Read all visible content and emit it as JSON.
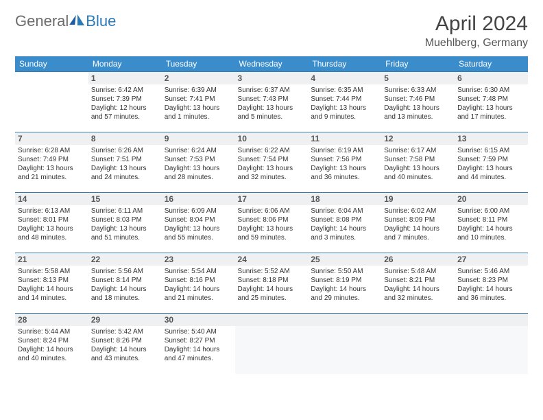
{
  "brand": {
    "general": "General",
    "blue": "Blue"
  },
  "title": "April 2024",
  "location": "Muehlberg, Germany",
  "weekdays": [
    "Sunday",
    "Monday",
    "Tuesday",
    "Wednesday",
    "Thursday",
    "Friday",
    "Saturday"
  ],
  "header_bg": "#3a8ccb",
  "rule_color": "#3a7aa8",
  "daynum_bg": "#eef0f1",
  "days": [
    {
      "n": 1,
      "sunrise": "6:42 AM",
      "sunset": "7:39 PM",
      "daylight": "12 hours and 57 minutes."
    },
    {
      "n": 2,
      "sunrise": "6:39 AM",
      "sunset": "7:41 PM",
      "daylight": "13 hours and 1 minutes."
    },
    {
      "n": 3,
      "sunrise": "6:37 AM",
      "sunset": "7:43 PM",
      "daylight": "13 hours and 5 minutes."
    },
    {
      "n": 4,
      "sunrise": "6:35 AM",
      "sunset": "7:44 PM",
      "daylight": "13 hours and 9 minutes."
    },
    {
      "n": 5,
      "sunrise": "6:33 AM",
      "sunset": "7:46 PM",
      "daylight": "13 hours and 13 minutes."
    },
    {
      "n": 6,
      "sunrise": "6:30 AM",
      "sunset": "7:48 PM",
      "daylight": "13 hours and 17 minutes."
    },
    {
      "n": 7,
      "sunrise": "6:28 AM",
      "sunset": "7:49 PM",
      "daylight": "13 hours and 21 minutes."
    },
    {
      "n": 8,
      "sunrise": "6:26 AM",
      "sunset": "7:51 PM",
      "daylight": "13 hours and 24 minutes."
    },
    {
      "n": 9,
      "sunrise": "6:24 AM",
      "sunset": "7:53 PM",
      "daylight": "13 hours and 28 minutes."
    },
    {
      "n": 10,
      "sunrise": "6:22 AM",
      "sunset": "7:54 PM",
      "daylight": "13 hours and 32 minutes."
    },
    {
      "n": 11,
      "sunrise": "6:19 AM",
      "sunset": "7:56 PM",
      "daylight": "13 hours and 36 minutes."
    },
    {
      "n": 12,
      "sunrise": "6:17 AM",
      "sunset": "7:58 PM",
      "daylight": "13 hours and 40 minutes."
    },
    {
      "n": 13,
      "sunrise": "6:15 AM",
      "sunset": "7:59 PM",
      "daylight": "13 hours and 44 minutes."
    },
    {
      "n": 14,
      "sunrise": "6:13 AM",
      "sunset": "8:01 PM",
      "daylight": "13 hours and 48 minutes."
    },
    {
      "n": 15,
      "sunrise": "6:11 AM",
      "sunset": "8:03 PM",
      "daylight": "13 hours and 51 minutes."
    },
    {
      "n": 16,
      "sunrise": "6:09 AM",
      "sunset": "8:04 PM",
      "daylight": "13 hours and 55 minutes."
    },
    {
      "n": 17,
      "sunrise": "6:06 AM",
      "sunset": "8:06 PM",
      "daylight": "13 hours and 59 minutes."
    },
    {
      "n": 18,
      "sunrise": "6:04 AM",
      "sunset": "8:08 PM",
      "daylight": "14 hours and 3 minutes."
    },
    {
      "n": 19,
      "sunrise": "6:02 AM",
      "sunset": "8:09 PM",
      "daylight": "14 hours and 7 minutes."
    },
    {
      "n": 20,
      "sunrise": "6:00 AM",
      "sunset": "8:11 PM",
      "daylight": "14 hours and 10 minutes."
    },
    {
      "n": 21,
      "sunrise": "5:58 AM",
      "sunset": "8:13 PM",
      "daylight": "14 hours and 14 minutes."
    },
    {
      "n": 22,
      "sunrise": "5:56 AM",
      "sunset": "8:14 PM",
      "daylight": "14 hours and 18 minutes."
    },
    {
      "n": 23,
      "sunrise": "5:54 AM",
      "sunset": "8:16 PM",
      "daylight": "14 hours and 21 minutes."
    },
    {
      "n": 24,
      "sunrise": "5:52 AM",
      "sunset": "8:18 PM",
      "daylight": "14 hours and 25 minutes."
    },
    {
      "n": 25,
      "sunrise": "5:50 AM",
      "sunset": "8:19 PM",
      "daylight": "14 hours and 29 minutes."
    },
    {
      "n": 26,
      "sunrise": "5:48 AM",
      "sunset": "8:21 PM",
      "daylight": "14 hours and 32 minutes."
    },
    {
      "n": 27,
      "sunrise": "5:46 AM",
      "sunset": "8:23 PM",
      "daylight": "14 hours and 36 minutes."
    },
    {
      "n": 28,
      "sunrise": "5:44 AM",
      "sunset": "8:24 PM",
      "daylight": "14 hours and 40 minutes."
    },
    {
      "n": 29,
      "sunrise": "5:42 AM",
      "sunset": "8:26 PM",
      "daylight": "14 hours and 43 minutes."
    },
    {
      "n": 30,
      "sunrise": "5:40 AM",
      "sunset": "8:27 PM",
      "daylight": "14 hours and 47 minutes."
    }
  ],
  "lead_blanks": 1,
  "trail_blanks": 4,
  "labels": {
    "sunrise": "Sunrise: ",
    "sunset": "Sunset: ",
    "daylight": "Daylight: "
  }
}
